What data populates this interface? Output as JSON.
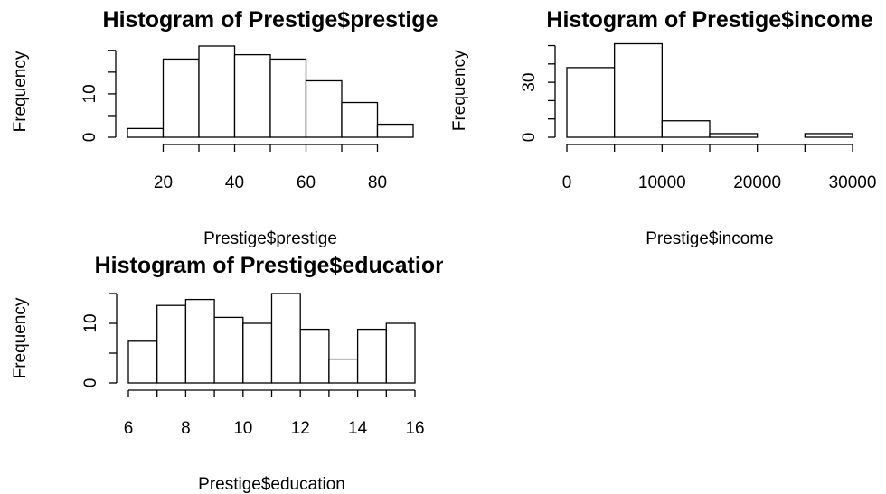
{
  "chart_data": [
    {
      "type": "histogram",
      "title": "Histogram of Prestige$prestige",
      "x_label": "Prestige$prestige",
      "y_label": "Frequency",
      "bins": [
        10,
        20,
        30,
        40,
        50,
        60,
        70,
        80,
        90
      ],
      "values": [
        2,
        18,
        21,
        19,
        18,
        13,
        8,
        3
      ],
      "color": "#ffffff",
      "xlim": [
        10,
        90
      ],
      "xticks": [
        20,
        40,
        60,
        80
      ],
      "xticks_unlabeled": [
        30,
        50,
        70
      ],
      "ylim": [
        0,
        21
      ],
      "yticks": [
        0,
        10
      ],
      "yticks_unlabeled": [
        5,
        15,
        20
      ]
    },
    {
      "type": "histogram",
      "title": "Histogram of Prestige$income",
      "x_label": "Prestige$income",
      "y_label": "Frequency",
      "bins": [
        0,
        5000,
        10000,
        15000,
        20000,
        25000,
        30000
      ],
      "values": [
        38,
        51,
        9,
        2,
        0,
        2
      ],
      "color": "#ffffff",
      "xlim": [
        0,
        30000
      ],
      "xticks": [
        0,
        10000,
        20000,
        30000
      ],
      "xticks_unlabeled": [
        5000,
        15000,
        25000
      ],
      "ylim": [
        0,
        51
      ],
      "yticks": [
        0,
        30
      ],
      "yticks_unlabeled": [
        10,
        20,
        40,
        50
      ]
    },
    {
      "type": "histogram",
      "title": "Histogram of Prestige$education",
      "x_label": "Prestige$education",
      "y_label": "Frequency",
      "bins": [
        6,
        7,
        8,
        9,
        10,
        11,
        12,
        13,
        14,
        15,
        16
      ],
      "values": [
        7,
        13,
        14,
        11,
        10,
        15,
        9,
        4,
        9,
        10
      ],
      "color": "#ffffff",
      "xlim": [
        6,
        16
      ],
      "xticks": [
        6,
        8,
        10,
        12,
        14,
        16
      ],
      "xticks_unlabeled": [
        7,
        9,
        11,
        13,
        15
      ],
      "ylim": [
        0,
        15
      ],
      "yticks": [
        0,
        10
      ],
      "yticks_unlabeled": [
        5,
        15
      ]
    }
  ]
}
